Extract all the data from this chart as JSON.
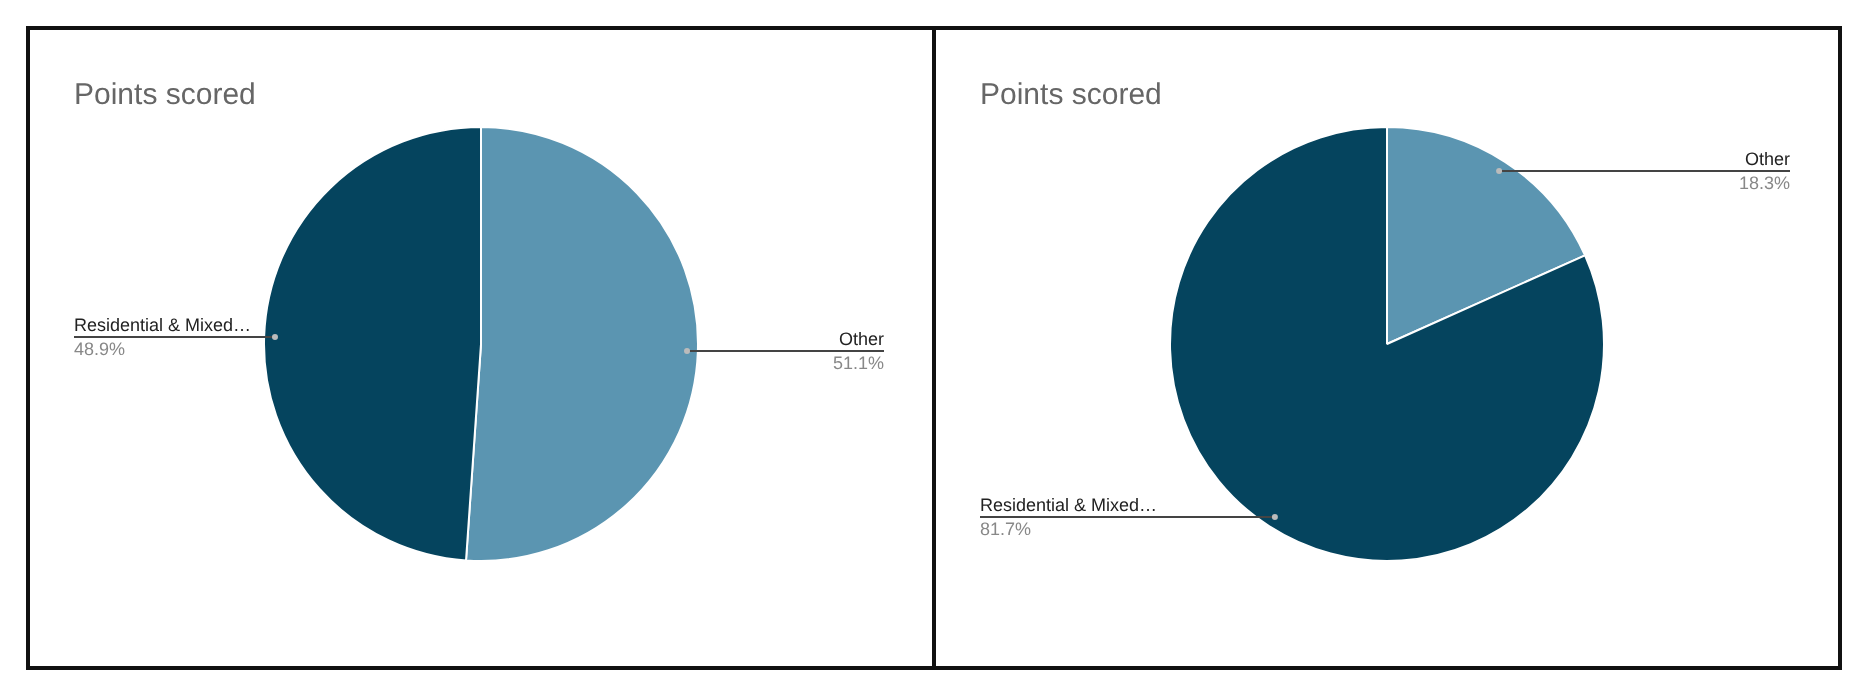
{
  "chart_data": [
    {
      "type": "pie",
      "title": "Points scored",
      "categories": [
        "Other",
        "Residential & Mixed…"
      ],
      "values": [
        51.1,
        48.9
      ],
      "colors": [
        "#5b95b1",
        "#05445e"
      ],
      "value_labels": [
        "51.1%",
        "48.9%"
      ],
      "legend": false
    },
    {
      "type": "pie",
      "title": "Points scored",
      "categories": [
        "Other",
        "Residential & Mixed…"
      ],
      "values": [
        18.3,
        81.7
      ],
      "colors": [
        "#5b95b1",
        "#05445e"
      ],
      "value_labels": [
        "18.3%",
        "81.7%"
      ],
      "legend": false
    }
  ]
}
